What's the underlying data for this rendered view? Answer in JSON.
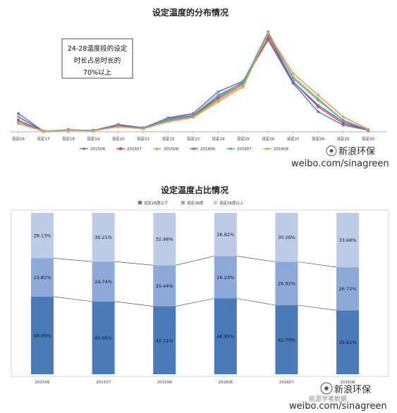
{
  "colors": {
    "s201506": "#4f81bd",
    "s201507": "#c0504d",
    "s201508": "#9bbb59",
    "s201606": "#8064a2",
    "s201607": "#4bacc6",
    "s201608": "#f79646",
    "bar_below": "#4a7ab8",
    "bar_at": "#8ea9d8",
    "bar_above": "#bccbe6"
  },
  "annotation": {
    "line1": "24-28温度段的设定",
    "line2": "时长占总时长的",
    "line3": "70%以上"
  },
  "watermark": {
    "brand_top": "新浪环保",
    "url_top": "weibo.com/sinagreen",
    "brand_bottom": "新浪环保",
    "url_bottom": "weibo.com/sinagreen",
    "faded_bottom": "能源学者数据"
  },
  "chart_data": [
    {
      "type": "line",
      "title": "设定温度的分布情况",
      "x": [
        "设定16",
        "设定17",
        "设定18",
        "设定19",
        "设定20",
        "设定21",
        "设定22",
        "设定23",
        "设定24",
        "设定25",
        "设定26",
        "设定27",
        "设定28",
        "设定29",
        "设定30"
      ],
      "ylim": [
        0,
        0.3
      ],
      "grid": false,
      "legend": "bottom",
      "series": [
        {
          "name": "201506",
          "values": [
            0.055,
            0.002,
            0.006,
            0.004,
            0.022,
            0.012,
            0.04,
            0.05,
            0.105,
            0.15,
            0.275,
            0.145,
            0.06,
            0.02,
            0.005
          ]
        },
        {
          "name": "201507",
          "values": [
            0.035,
            0.002,
            0.005,
            0.004,
            0.018,
            0.01,
            0.035,
            0.048,
            0.1,
            0.145,
            0.28,
            0.15,
            0.075,
            0.025,
            0.005
          ]
        },
        {
          "name": "201508",
          "values": [
            0.025,
            0.002,
            0.004,
            0.003,
            0.016,
            0.009,
            0.032,
            0.045,
            0.095,
            0.14,
            0.29,
            0.165,
            0.1,
            0.035,
            0.006
          ]
        },
        {
          "name": "201606",
          "values": [
            0.045,
            0.002,
            0.006,
            0.004,
            0.02,
            0.011,
            0.042,
            0.055,
            0.12,
            0.152,
            0.29,
            0.15,
            0.08,
            0.03,
            0.005
          ]
        },
        {
          "name": "201607",
          "values": [
            0.03,
            0.002,
            0.005,
            0.004,
            0.017,
            0.01,
            0.037,
            0.05,
            0.11,
            0.148,
            0.3,
            0.16,
            0.095,
            0.035,
            0.006
          ]
        },
        {
          "name": "201608",
          "values": [
            0.025,
            0.002,
            0.004,
            0.003,
            0.015,
            0.009,
            0.03,
            0.043,
            0.09,
            0.135,
            0.295,
            0.175,
            0.11,
            0.045,
            0.008
          ]
        }
      ]
    },
    {
      "type": "bar",
      "stacked": true,
      "title": "设定温度占比情况",
      "categories": [
        "201506",
        "201507",
        "201508",
        "201606",
        "201607",
        "201608"
      ],
      "ylim": [
        0,
        100
      ],
      "legend": "top",
      "series": [
        {
          "name": "设定26度以下",
          "values": [
            48.05,
            45.05,
            42.11,
            46.95,
            42.79,
            39.61
          ],
          "labels": [
            "48.05%",
            "45.05%",
            "42.11%",
            "46.95%",
            "42.79%",
            "39.61%"
          ]
        },
        {
          "name": "设定26度",
          "values": [
            23.82,
            24.74,
            25.44,
            26.23,
            26.92,
            26.72
          ],
          "labels": [
            "23.82%",
            "24.74%",
            "25.44%",
            "26.23%",
            "26.92%",
            "26.72%"
          ]
        },
        {
          "name": "设定26度以上",
          "values": [
            28.13,
            30.21,
            32.46,
            26.82,
            30.29,
            33.68
          ],
          "labels": [
            "28.13%",
            "30.21%",
            "32.46%",
            "26.82%",
            "30.29%",
            "33.68%"
          ]
        }
      ]
    }
  ]
}
